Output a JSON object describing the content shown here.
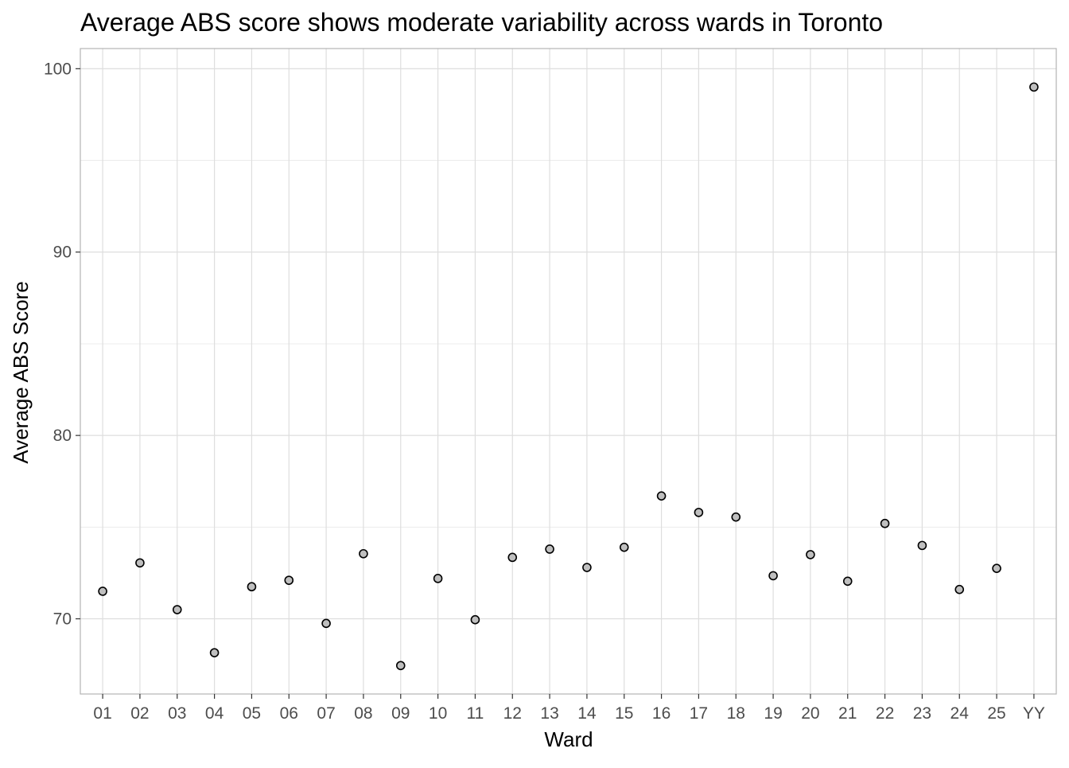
{
  "chart_data": {
    "type": "scatter",
    "title": "Average ABS score shows moderate variability across wards in Toronto",
    "xlabel": "Ward",
    "ylabel": "Average ABS Score",
    "categories": [
      "01",
      "02",
      "03",
      "04",
      "05",
      "06",
      "07",
      "08",
      "09",
      "10",
      "11",
      "12",
      "13",
      "14",
      "15",
      "16",
      "17",
      "18",
      "19",
      "20",
      "21",
      "22",
      "23",
      "24",
      "25",
      "YY"
    ],
    "values": [
      71.5,
      73.05,
      70.5,
      68.15,
      71.75,
      72.1,
      69.75,
      73.55,
      67.45,
      72.2,
      69.95,
      73.35,
      73.8,
      72.8,
      73.9,
      76.7,
      75.8,
      75.55,
      72.35,
      73.5,
      72.05,
      75.2,
      74.0,
      71.6,
      72.75,
      99.0
    ],
    "ylim": [
      65.9,
      101.1
    ],
    "yticks": [
      70,
      80,
      90,
      100
    ],
    "grid": true,
    "marker_fill": "#bfbfbf",
    "marker_stroke": "#000000",
    "grid_color": "#dedede",
    "minor_grid_color": "#ececec",
    "panel_border_color": "#b3b3b3"
  }
}
